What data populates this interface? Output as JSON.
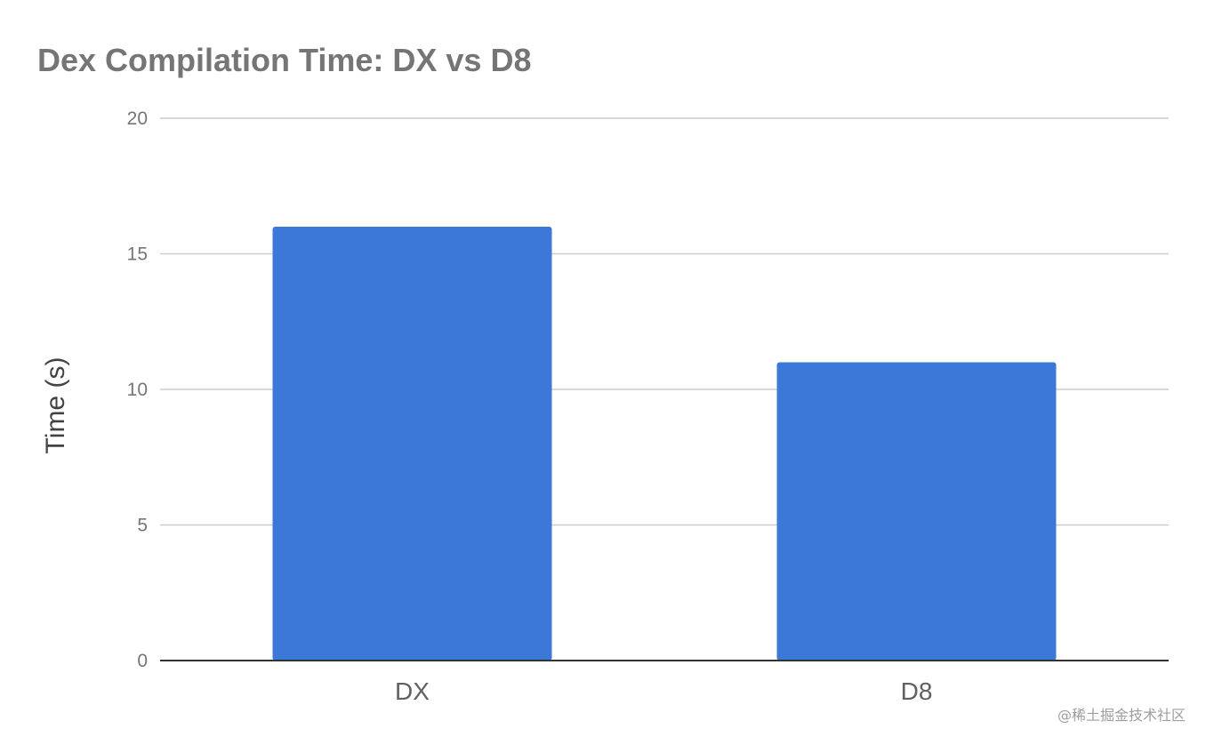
{
  "chart_data": {
    "type": "bar",
    "title": "Dex Compilation Time: DX vs D8",
    "xlabel": "",
    "ylabel": "Time (s)",
    "categories": [
      "DX",
      "D8"
    ],
    "values": [
      16,
      11
    ],
    "ylim": [
      0,
      20
    ],
    "yticks": [
      0,
      5,
      10,
      15,
      20
    ],
    "grid": true,
    "legend": "none",
    "bar_color": "#3c78d8",
    "gridline_color": "#cccccc",
    "baseline_color": "#333333"
  },
  "watermark": "@稀土掘金技术社区"
}
